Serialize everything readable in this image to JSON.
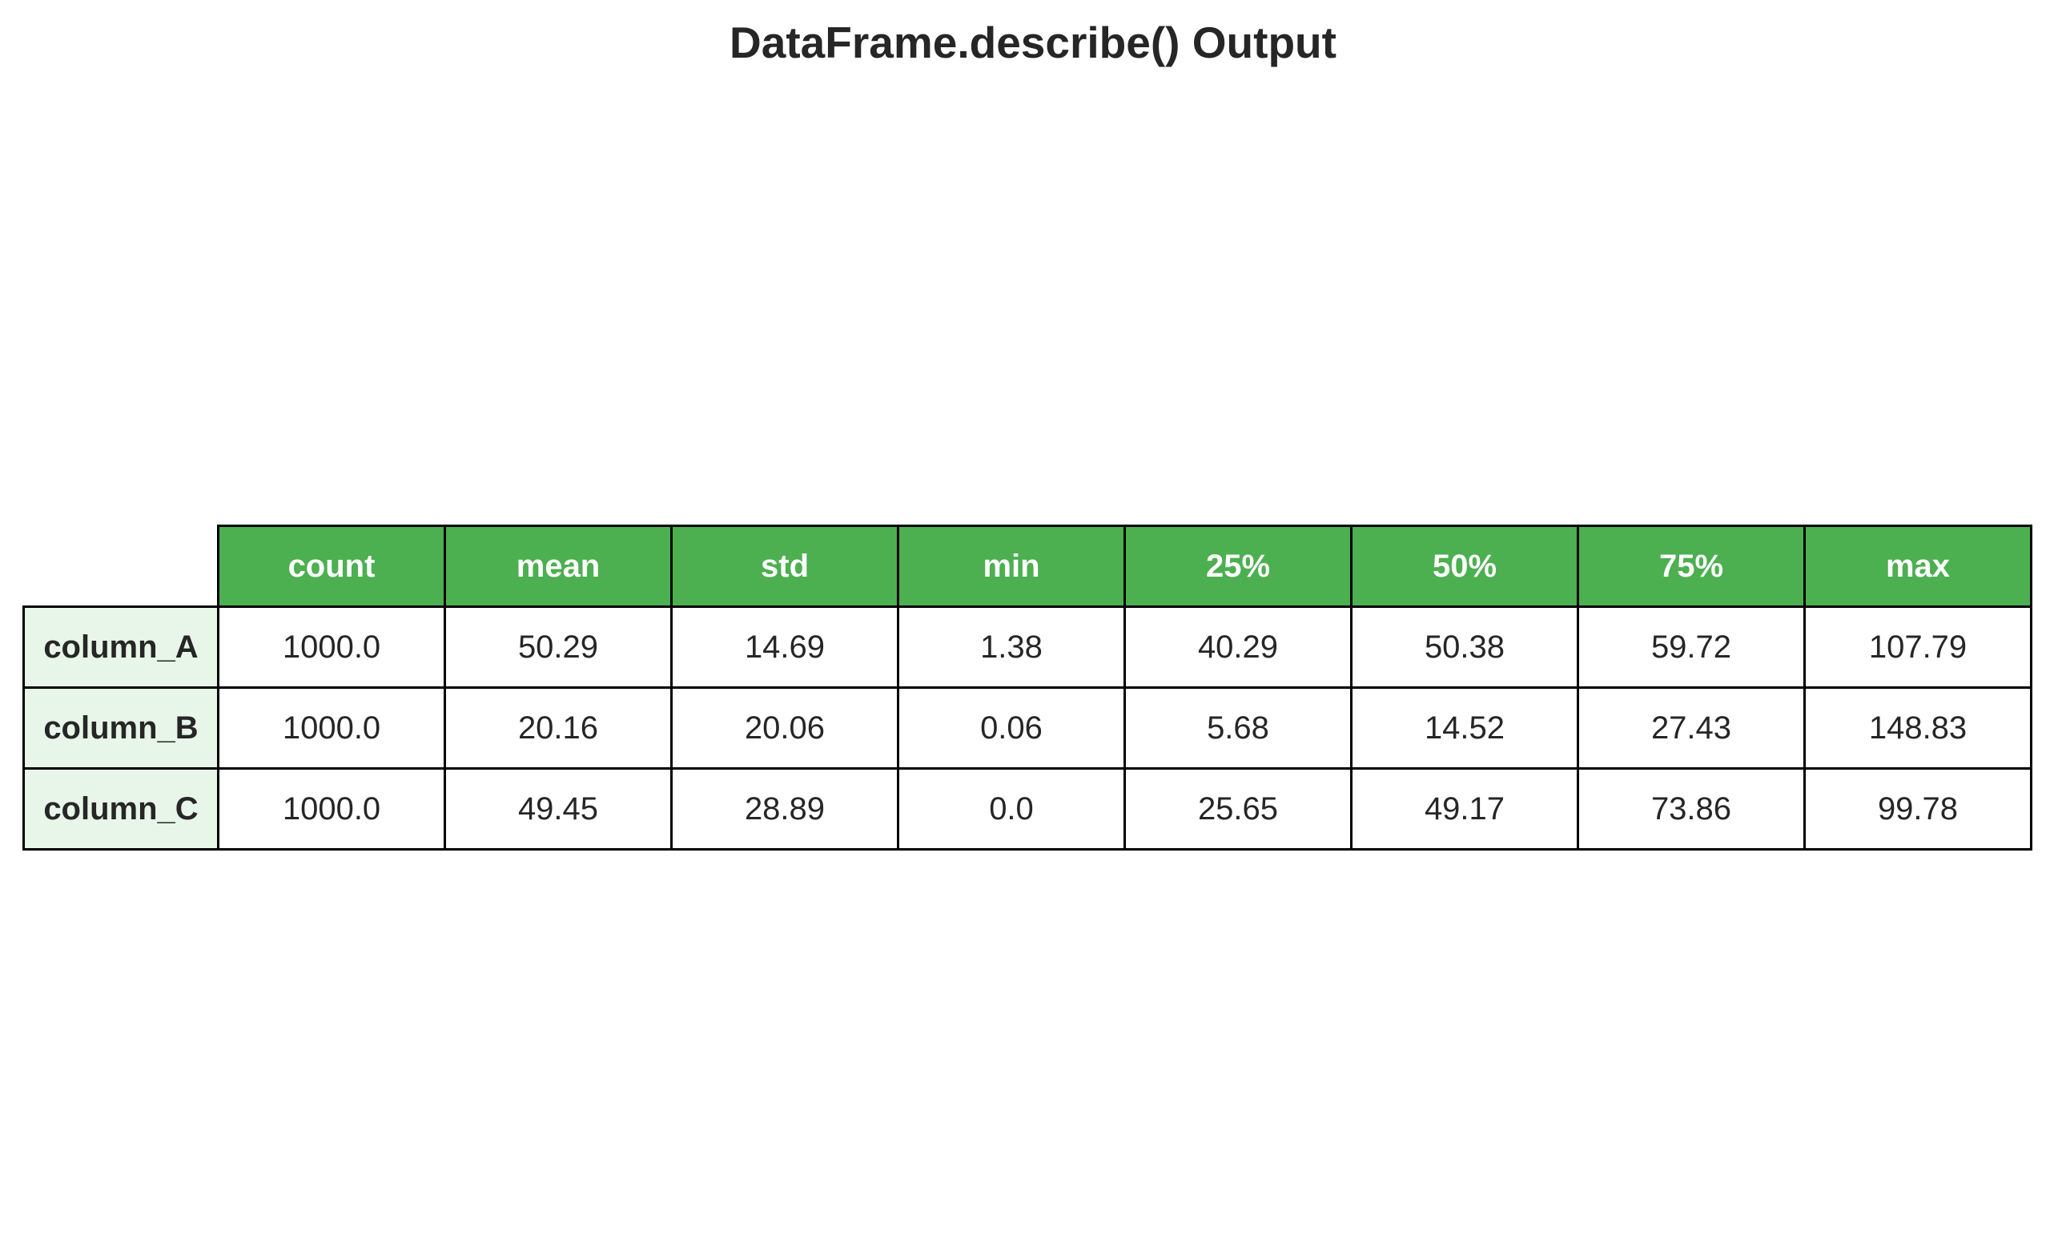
{
  "title": "DataFrame.describe() Output",
  "colors": {
    "header_background": "#4caf50",
    "header_text": "#ffffff",
    "row_header_background": "#e8f5e9",
    "cell_background": "#ffffff",
    "border": "#000000"
  },
  "chart_data": {
    "type": "table",
    "title": "DataFrame.describe() Output",
    "columns": [
      "count",
      "mean",
      "std",
      "min",
      "25%",
      "50%",
      "75%",
      "max"
    ],
    "rows": [
      {
        "label": "column_A",
        "values": [
          "1000.0",
          "50.29",
          "14.69",
          "1.38",
          "40.29",
          "50.38",
          "59.72",
          "107.79"
        ]
      },
      {
        "label": "column_B",
        "values": [
          "1000.0",
          "20.16",
          "20.06",
          "0.06",
          "5.68",
          "14.52",
          "27.43",
          "148.83"
        ]
      },
      {
        "label": "column_C",
        "values": [
          "1000.0",
          "49.45",
          "28.89",
          "0.0",
          "25.65",
          "49.17",
          "73.86",
          "99.78"
        ]
      }
    ]
  }
}
